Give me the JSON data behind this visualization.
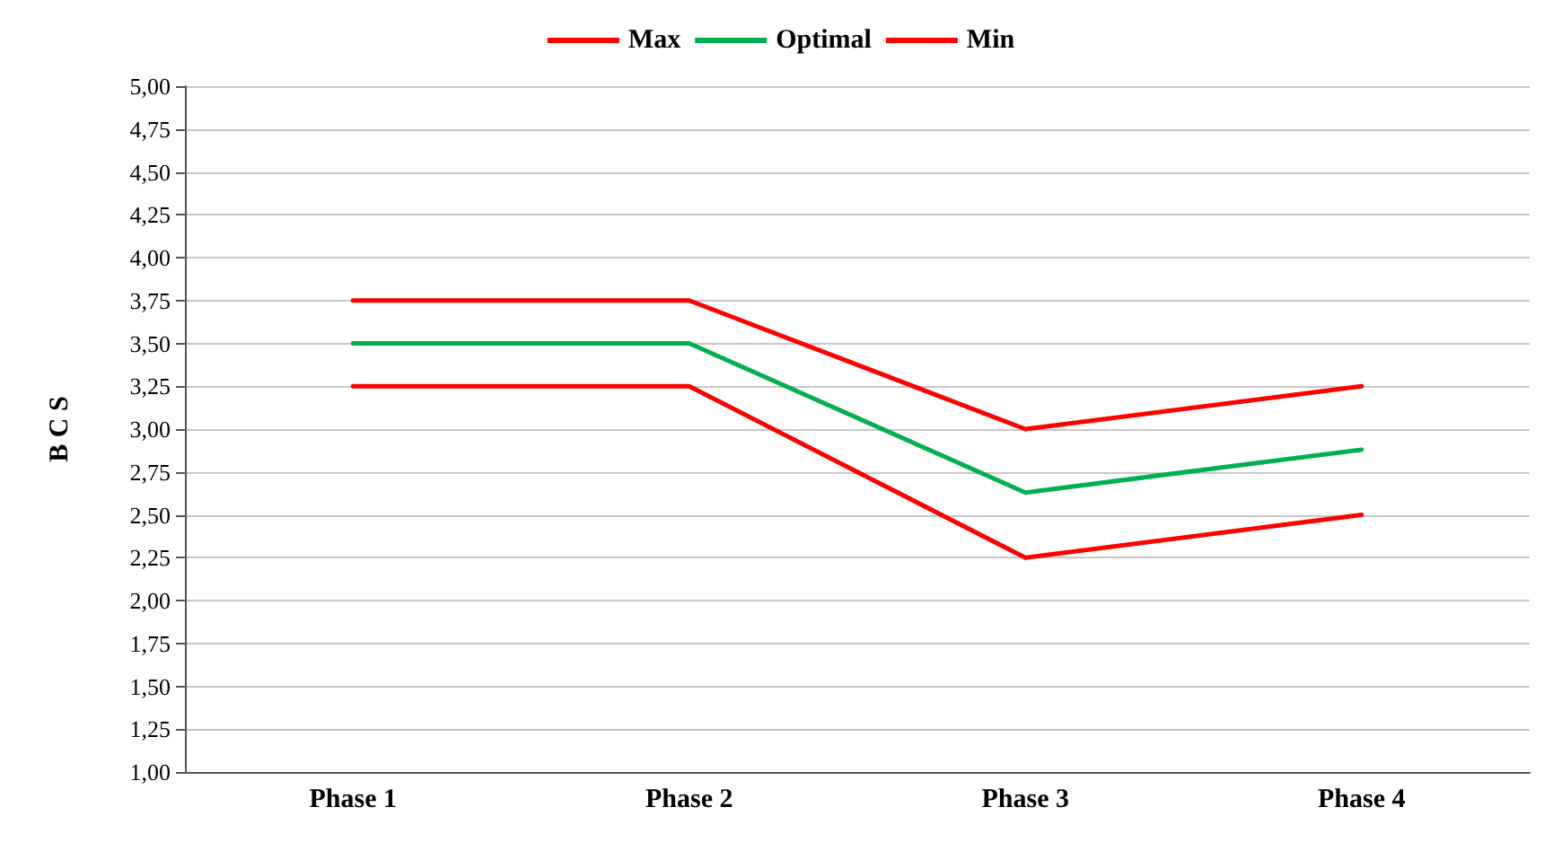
{
  "chart_data": {
    "type": "line",
    "ylabel": "B C S",
    "categories": [
      "Phase 1",
      "Phase 2",
      "Phase 3",
      "Phase 4"
    ],
    "series": [
      {
        "name": "Max",
        "color": "#ff0000",
        "values": [
          3.75,
          3.75,
          3.0,
          3.25
        ]
      },
      {
        "name": "Optimal",
        "color": "#00b050",
        "values": [
          3.5,
          3.5,
          2.63,
          2.88
        ]
      },
      {
        "name": "Min",
        "color": "#ff0000",
        "values": [
          3.25,
          3.25,
          2.25,
          2.5
        ]
      }
    ],
    "ylim": [
      1,
      5
    ],
    "yticks": [
      {
        "value": 1,
        "label": "1,00"
      },
      {
        "value": 1.25,
        "label": "1,25"
      },
      {
        "value": 1.5,
        "label": "1,50"
      },
      {
        "value": 1.75,
        "label": "1,75"
      },
      {
        "value": 2,
        "label": "2,00"
      },
      {
        "value": 2.25,
        "label": "2,25"
      },
      {
        "value": 2.5,
        "label": "2,50"
      },
      {
        "value": 2.75,
        "label": "2,75"
      },
      {
        "value": 3,
        "label": "3,00"
      },
      {
        "value": 3.25,
        "label": "3,25"
      },
      {
        "value": 3.5,
        "label": "3,50"
      },
      {
        "value": 3.75,
        "label": "3,75"
      },
      {
        "value": 4,
        "label": "4,00"
      },
      {
        "value": 4.25,
        "label": "4,25"
      },
      {
        "value": 4.5,
        "label": "4,50"
      },
      {
        "value": 4.75,
        "label": "4,75"
      },
      {
        "value": 5,
        "label": "5,00"
      }
    ],
    "grid": "y",
    "legend": "top",
    "marker": "none",
    "line_style": "solid"
  }
}
